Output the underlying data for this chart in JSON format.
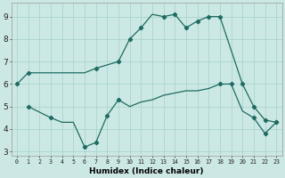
{
  "xlabel": "Humidex (Indice chaleur)",
  "bg_color": "#cce8e4",
  "grid_color": "#aad4cf",
  "line_color": "#1e6b62",
  "xlim": [
    -0.5,
    23.5
  ],
  "ylim": [
    2.8,
    9.6
  ],
  "yticks": [
    3,
    4,
    5,
    6,
    7,
    8,
    9
  ],
  "xticks": [
    0,
    1,
    2,
    3,
    4,
    5,
    6,
    7,
    8,
    9,
    10,
    11,
    12,
    13,
    14,
    15,
    16,
    17,
    18,
    19,
    20,
    21,
    22,
    23
  ],
  "line1_x": [
    0,
    1,
    2,
    3,
    4,
    5,
    6,
    7,
    9,
    10,
    11,
    12,
    13,
    14,
    15,
    16,
    17,
    18,
    20,
    21,
    22,
    23
  ],
  "line1_y": [
    6.0,
    6.5,
    6.5,
    6.5,
    6.5,
    6.5,
    6.5,
    6.7,
    7.0,
    8.0,
    8.5,
    9.1,
    9.0,
    9.1,
    8.5,
    8.8,
    9.0,
    9.0,
    6.0,
    5.0,
    4.4,
    4.3
  ],
  "line1_markers_x": [
    0,
    1,
    7,
    9,
    10,
    11,
    13,
    14,
    15,
    16,
    17,
    18,
    20,
    21,
    22,
    23
  ],
  "line1_markers_y": [
    6.0,
    6.5,
    6.7,
    7.0,
    8.0,
    8.5,
    9.0,
    9.1,
    8.5,
    8.8,
    9.0,
    9.0,
    6.0,
    5.0,
    4.4,
    4.3
  ],
  "line2_x": [
    1,
    3,
    4,
    5,
    6,
    7,
    8,
    9,
    10,
    11,
    12,
    13,
    14,
    15,
    16,
    17,
    18,
    19,
    20,
    21,
    22,
    23
  ],
  "line2_y": [
    5.0,
    4.5,
    4.3,
    4.3,
    3.2,
    3.4,
    4.6,
    5.3,
    5.0,
    5.2,
    5.3,
    5.5,
    5.6,
    5.7,
    5.7,
    5.8,
    6.0,
    6.0,
    4.8,
    4.5,
    3.8,
    4.3
  ],
  "line2_markers_x": [
    1,
    3,
    6,
    7,
    8,
    9,
    18,
    19,
    21,
    22,
    23
  ],
  "line2_markers_y": [
    5.0,
    4.5,
    3.2,
    3.4,
    4.6,
    5.3,
    6.0,
    6.0,
    4.5,
    3.8,
    4.3
  ]
}
